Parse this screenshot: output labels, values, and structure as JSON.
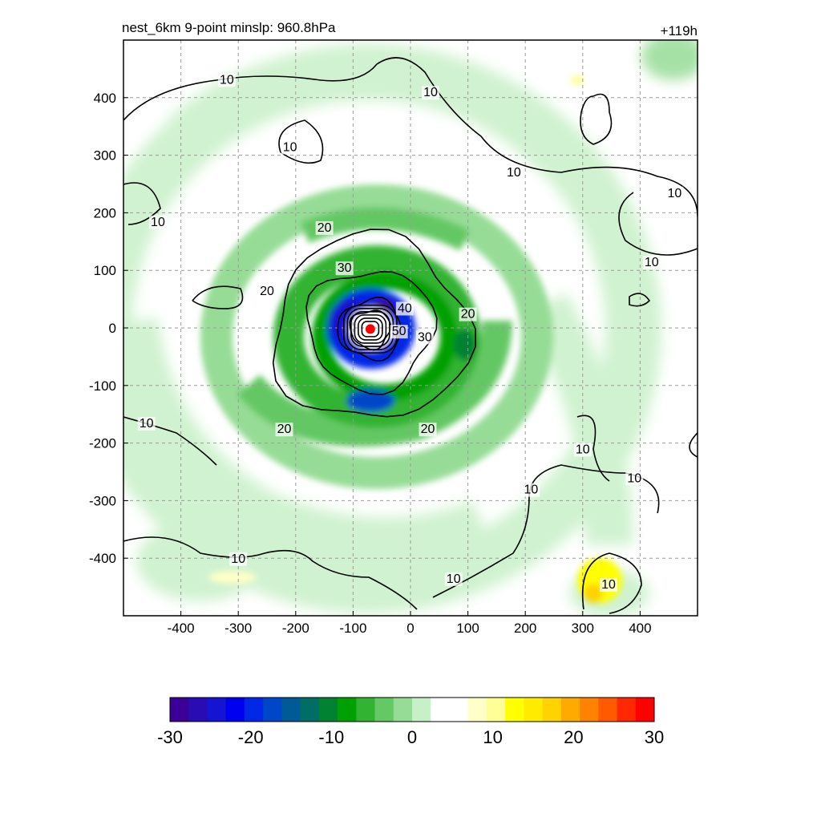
{
  "title_left": "nest_6km  9-point minslp: 960.8hPa",
  "title_right": "+119h",
  "colors": {
    "palette": [
      "#3b0097",
      "#2a0cb4",
      "#1414d2",
      "#0000f0",
      "#0028e6",
      "#0046c8",
      "#005a96",
      "#006e64",
      "#008232",
      "#00a000",
      "#32b432",
      "#64c864",
      "#96dc96",
      "#c8f0c8",
      "#ffffff",
      "#ffffff",
      "#ffffc8",
      "#ffff96",
      "#ffff00",
      "#ffeb00",
      "#ffd200",
      "#ffaa00",
      "#ff8200",
      "#ff5a00",
      "#ff2800",
      "#ff0000"
    ],
    "center_marker": "#ff0000",
    "contour": "#000000",
    "grid": "#9a9a9a"
  },
  "chart_data": {
    "type": "heatmap",
    "title": "nest_6km  9-point minslp: 960.8hPa",
    "annotation": "+119h",
    "xlim": [
      -500,
      500
    ],
    "ylim": [
      -500,
      500
    ],
    "x_ticks": [
      -400,
      -300,
      -200,
      -100,
      0,
      100,
      200,
      300,
      400
    ],
    "y_ticks": [
      400,
      300,
      200,
      100,
      0,
      -100,
      -200,
      -300,
      -400
    ],
    "grid": true,
    "colorbar": {
      "min": -30,
      "max": 30,
      "ticks": [
        -30,
        -20,
        -10,
        0,
        10,
        20,
        30
      ],
      "placement": "bottom"
    },
    "storm_center": {
      "x": -70,
      "y": -2
    },
    "contours": [
      {
        "level": "10",
        "rings": []
      },
      {
        "level": "20",
        "radius": 170
      },
      {
        "level": "30",
        "radius": 110
      },
      {
        "level": "40",
        "radius": 55
      },
      {
        "level": "50",
        "radius": 35
      }
    ],
    "contour_labels": [
      {
        "text": "10",
        "x": -320,
        "y": 427
      },
      {
        "text": "10",
        "x": 180,
        "y": 266
      },
      {
        "text": "10",
        "x": 460,
        "y": 230
      },
      {
        "text": "10",
        "x": 420,
        "y": 110
      },
      {
        "text": "10",
        "x": -440,
        "y": 180
      },
      {
        "text": "10",
        "x": -460,
        "y": -170
      },
      {
        "text": "10",
        "x": -300,
        "y": -405
      },
      {
        "text": "10",
        "x": 75,
        "y": -440
      },
      {
        "text": "10",
        "x": 300,
        "y": -215
      },
      {
        "text": "10",
        "x": 390,
        "y": -265
      },
      {
        "text": "10",
        "x": 210,
        "y": -285
      },
      {
        "text": "10",
        "x": 345,
        "y": -450
      },
      {
        "text": "10",
        "x": 35,
        "y": 405
      },
      {
        "text": "10",
        "x": -210,
        "y": 310
      },
      {
        "text": "20",
        "x": -150,
        "y": 170
      },
      {
        "text": "20",
        "x": -250,
        "y": 60
      },
      {
        "text": "20",
        "x": 100,
        "y": 20
      },
      {
        "text": "20",
        "x": 30,
        "y": -180
      },
      {
        "text": "20",
        "x": -220,
        "y": -180
      },
      {
        "text": "30",
        "x": -115,
        "y": 100
      },
      {
        "text": "30",
        "x": 25,
        "y": -20
      },
      {
        "text": "40",
        "x": -10,
        "y": 30
      },
      {
        "text": "50",
        "x": -20,
        "y": -10
      }
    ]
  }
}
